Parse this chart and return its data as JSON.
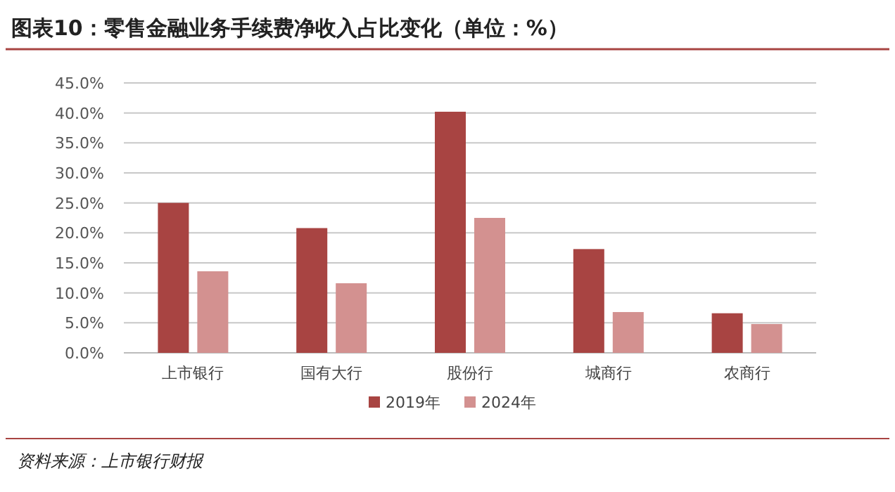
{
  "chart_data": {
    "type": "bar",
    "title": "图表10：零售金融业务手续费净收入占比变化（单位：%）",
    "categories": [
      "上市银行",
      "国有大行",
      "股份行",
      "城商行",
      "农商行"
    ],
    "series": [
      {
        "name": "2019年",
        "color": "#a84442",
        "values": [
          25.0,
          20.8,
          40.2,
          17.3,
          6.6
        ]
      },
      {
        "name": "2024年",
        "color": "#d39190",
        "values": [
          13.6,
          11.6,
          22.5,
          6.8,
          4.8
        ]
      }
    ],
    "ylim": [
      0,
      45
    ],
    "yticks": [
      {
        "value": 0,
        "label": "0.0%"
      },
      {
        "value": 5,
        "label": "5.0%"
      },
      {
        "value": 10,
        "label": "10.0%"
      },
      {
        "value": 15,
        "label": "15.0%"
      },
      {
        "value": 20,
        "label": "20.0%"
      },
      {
        "value": 25,
        "label": "25.0%"
      },
      {
        "value": 30,
        "label": "30.0%"
      },
      {
        "value": 35,
        "label": "35.0%"
      },
      {
        "value": 40,
        "label": "40.0%"
      },
      {
        "value": 45,
        "label": "45.0%"
      }
    ],
    "grid": "y",
    "legend": "bottom",
    "annotations": [
      "资料来源：上市银行财报"
    ]
  }
}
